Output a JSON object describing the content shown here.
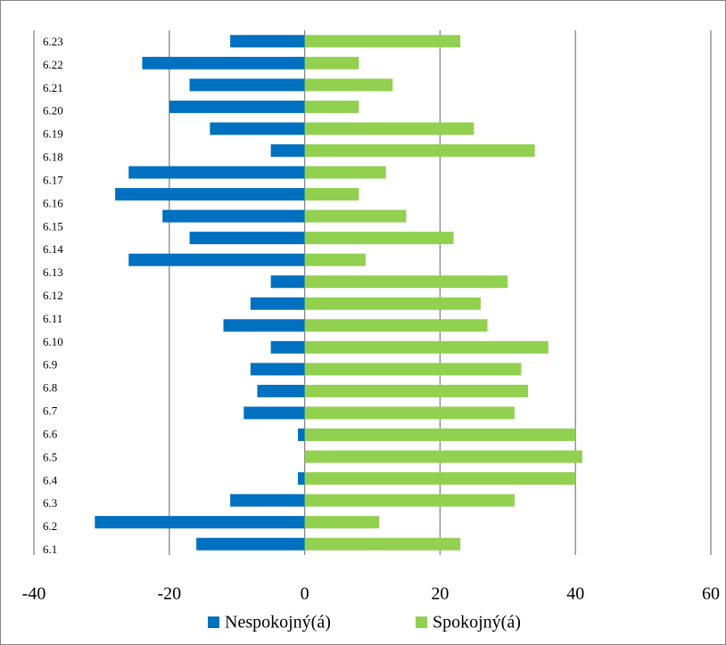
{
  "chart_data": {
    "type": "diverging-bar",
    "categories": [
      "6.1",
      "6.2",
      "6.3",
      "6.4",
      "6.5",
      "6.6",
      "6.7",
      "6.8",
      "6.9",
      "6.10",
      "6.11",
      "6.12",
      "6.13",
      "6.14",
      "6.15",
      "6.16",
      "6.17",
      "6.18",
      "6.19",
      "6.20",
      "6.21",
      "6.22",
      "6.23",
      null
    ],
    "series": [
      {
        "name": "Nespokojný(á)",
        "color": "#0070c0",
        "values": [
          -16,
          -31,
          -11,
          -1,
          0,
          -1,
          -9,
          -7,
          -8,
          -5,
          -12,
          -8,
          -5,
          -26,
          -17,
          -21,
          -28,
          -26,
          -5,
          -14,
          -20,
          -17,
          -24,
          -11
        ]
      },
      {
        "name": "Spokojný(á)",
        "color": "#92d050",
        "values": [
          23,
          11,
          31,
          40,
          41,
          40,
          31,
          33,
          32,
          36,
          27,
          26,
          30,
          9,
          22,
          15,
          8,
          12,
          34,
          25,
          8,
          13,
          8,
          23
        ]
      }
    ],
    "xlim": [
      -40,
      60
    ],
    "xticks": [
      -40,
      -20,
      0,
      20,
      40,
      60
    ],
    "grid": true
  }
}
